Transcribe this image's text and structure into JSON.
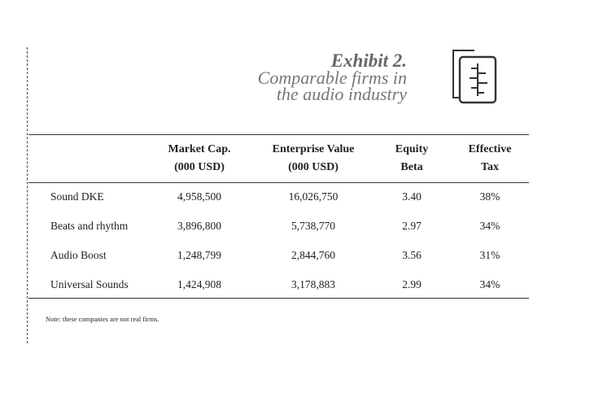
{
  "header": {
    "title": "Exhibit 2.",
    "subtitle": [
      "Comparable firms in",
      "the audio industry"
    ]
  },
  "table": {
    "columns": [
      [
        "Market Cap.",
        "(000 USD)"
      ],
      [
        "Enterprise Value",
        "(000 USD)"
      ],
      [
        "Equity",
        "Beta"
      ],
      [
        "Effective",
        "Tax"
      ]
    ],
    "rows": [
      [
        "Sound DKE",
        "4,958,500",
        "16,026,750",
        "3.40",
        "38%"
      ],
      [
        "Beats and rhythm",
        "3,896,800",
        "5,738,770",
        "2.97",
        "34%"
      ],
      [
        "Audio Boost",
        "1,248,799",
        "2,844,760",
        "3.56",
        "31%"
      ],
      [
        "Universal Sounds",
        "1,424,908",
        "3,178,883",
        "2.99",
        "34%"
      ]
    ]
  },
  "note": "Note: these companies are not real firms."
}
